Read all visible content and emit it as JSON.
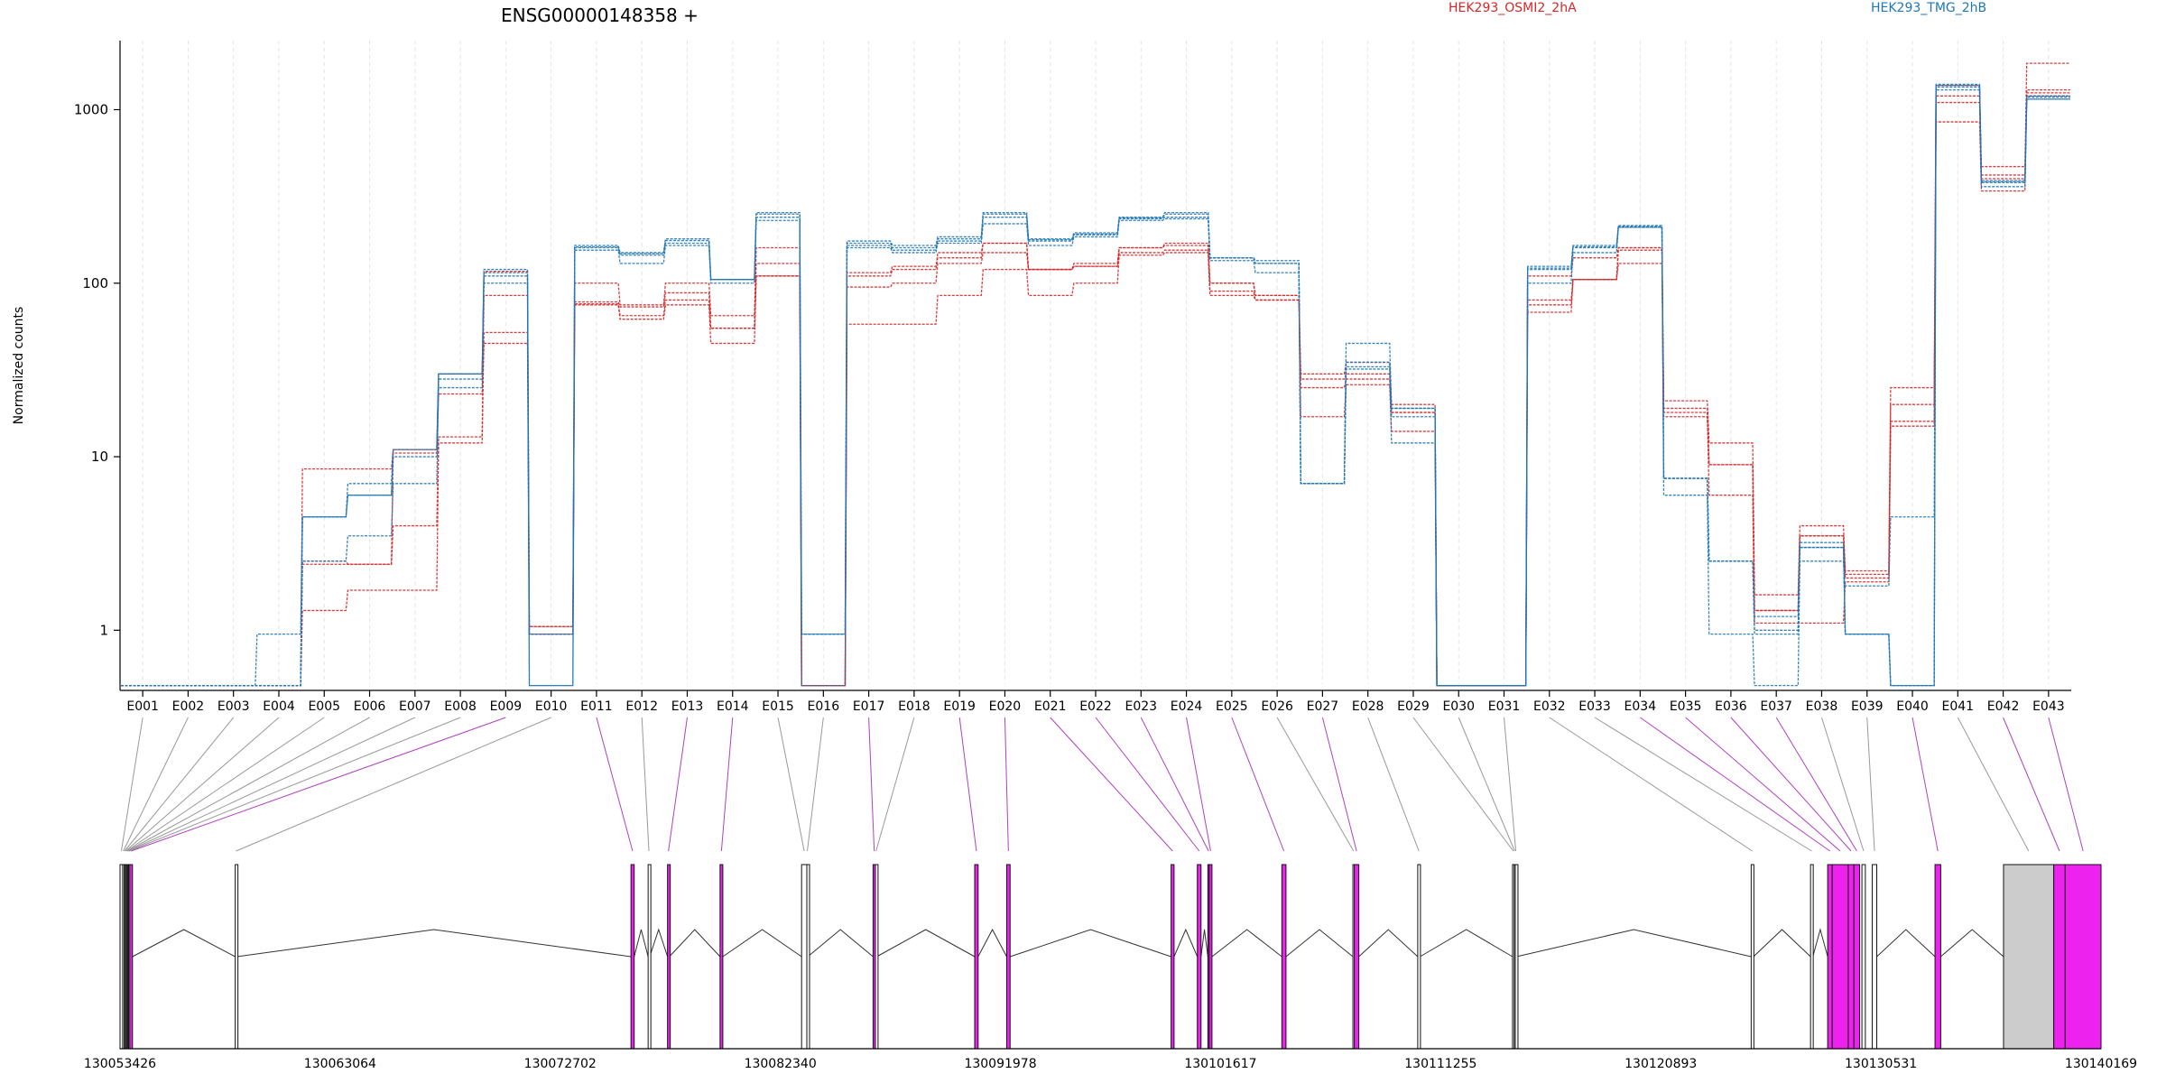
{
  "chart_data": {
    "type": "line",
    "title": "ENSG00000148358 +",
    "ylabel": "Normalized counts",
    "xlabel": "",
    "yscale": "log",
    "ylim": [
      0.45,
      2500
    ],
    "y_ticks": [
      1,
      10,
      100,
      1000
    ],
    "y_tick_labels": [
      "1",
      "10",
      "100",
      "1000"
    ],
    "grid": "vertical dashed lines at each exon",
    "legend_position": "top",
    "categories": [
      "E001",
      "E002",
      "E003",
      "E004",
      "E005",
      "E006",
      "E007",
      "E008",
      "E009",
      "E010",
      "E011",
      "E012",
      "E013",
      "E014",
      "E015",
      "E016",
      "E017",
      "E018",
      "E019",
      "E020",
      "E021",
      "E022",
      "E023",
      "E024",
      "E025",
      "E026",
      "E027",
      "E028",
      "E029",
      "E030",
      "E031",
      "E032",
      "E033",
      "E034",
      "E035",
      "E036",
      "E037",
      "E038",
      "E039",
      "E040",
      "E041",
      "E042",
      "E043"
    ],
    "groups": [
      {
        "name": "HEK293_OSMI2_2hA",
        "color": "#d62728"
      },
      {
        "name": "HEK293_TMG_2hB",
        "color": "#1f77b4"
      }
    ],
    "series": [
      {
        "group": 0,
        "values": [
          0.48,
          0.48,
          0.48,
          0.48,
          8.5,
          8.5,
          11,
          30,
          117,
          0.95,
          78,
          73,
          88,
          55,
          160,
          0.48,
          115,
          125,
          140,
          170,
          120,
          130,
          160,
          170,
          100,
          85,
          30,
          35,
          20,
          0.48,
          0.48,
          80,
          105,
          160,
          21,
          12,
          1.6,
          4,
          2.2,
          25,
          1380,
          470,
          1850
        ]
      },
      {
        "group": 0,
        "values": [
          0.48,
          0.48,
          0.48,
          0.48,
          2.4,
          2.4,
          4,
          13,
          85,
          1.05,
          100,
          75,
          100,
          65,
          130,
          0.48,
          95,
          100,
          130,
          150,
          120,
          125,
          150,
          155,
          90,
          80,
          25,
          28,
          18,
          0.48,
          0.48,
          75,
          105,
          155,
          19,
          9,
          1.3,
          3.5,
          2,
          16,
          1200,
          420,
          1300
        ]
      },
      {
        "group": 0,
        "values": [
          0.48,
          0.48,
          0.48,
          0.48,
          1.3,
          1.7,
          1.7,
          12,
          52,
          1.05,
          76,
          62,
          75,
          45,
          110,
          0.48,
          58,
          58,
          85,
          120,
          85,
          100,
          145,
          150,
          85,
          80,
          17,
          26,
          14,
          0.48,
          0.48,
          68,
          105,
          130,
          18,
          6,
          1.1,
          1.1,
          1.9,
          15,
          850,
          340,
          1200
        ]
      },
      {
        "group": 0,
        "values": [
          0.48,
          0.48,
          0.48,
          0.48,
          2.5,
          2.4,
          10.5,
          23,
          45,
          0.95,
          75,
          65,
          80,
          55,
          110,
          0.48,
          110,
          120,
          150,
          170,
          120,
          125,
          160,
          165,
          100,
          85,
          28,
          30,
          18,
          0.48,
          0.48,
          110,
          140,
          160,
          17,
          9,
          1.3,
          3.5,
          2.1,
          20,
          1100,
          400,
          1250
        ]
      },
      {
        "group": 1,
        "values": [
          0.48,
          0.48,
          0.48,
          0.95,
          4.5,
          6,
          10,
          30,
          120,
          0.95,
          165,
          150,
          180,
          105,
          255,
          0.95,
          175,
          165,
          185,
          255,
          180,
          195,
          240,
          255,
          140,
          130,
          7,
          45,
          19,
          0.48,
          0.48,
          125,
          165,
          215,
          7.5,
          2.5,
          0.95,
          3.2,
          0.95,
          0.48,
          1400,
          390,
          1200
        ]
      },
      {
        "group": 1,
        "values": [
          0.48,
          0.48,
          0.48,
          0.48,
          4.5,
          7,
          11,
          28,
          110,
          0.48,
          160,
          145,
          170,
          105,
          240,
          0.95,
          165,
          155,
          175,
          240,
          175,
          190,
          235,
          240,
          140,
          135,
          7,
          35,
          19,
          0.48,
          0.48,
          120,
          160,
          210,
          7.5,
          2.5,
          1.2,
          3,
          0.95,
          0.48,
          1350,
          380,
          1150
        ]
      },
      {
        "group": 1,
        "values": [
          0.48,
          0.48,
          0.48,
          0.48,
          2.5,
          3.5,
          7,
          25,
          100,
          0.48,
          155,
          130,
          165,
          100,
          230,
          0.48,
          160,
          150,
          170,
          220,
          165,
          185,
          230,
          235,
          135,
          115,
          7,
          33,
          17,
          0.48,
          0.48,
          100,
          150,
          210,
          6,
          0.95,
          0.48,
          2.5,
          1.8,
          4.5,
          1300,
          360,
          1150
        ]
      },
      {
        "group": 1,
        "values": [
          0.48,
          0.48,
          0.48,
          0.48,
          4.5,
          6,
          11,
          30,
          115,
          0.95,
          162,
          148,
          176,
          105,
          250,
          0.95,
          170,
          160,
          180,
          250,
          178,
          192,
          238,
          250,
          140,
          130,
          7,
          32,
          12,
          0.48,
          0.48,
          122,
          162,
          212,
          7.5,
          2.5,
          1,
          3,
          0.95,
          0.48,
          1380,
          385,
          1180
        ]
      }
    ],
    "genomic_ticks": [
      "130053426",
      "130063064",
      "130072702",
      "130082340",
      "130091978",
      "130101617",
      "130111255",
      "130120893",
      "130130531",
      "130140169"
    ],
    "exon_highlight_color": "#ee22ee",
    "exons": [
      {
        "id": "E001",
        "start": 130053426,
        "end": 130053540,
        "hl": false
      },
      {
        "id": "E002",
        "start": 130053540,
        "end": 130053600,
        "hl": false
      },
      {
        "id": "E003",
        "start": 130053600,
        "end": 130053650,
        "hl": false
      },
      {
        "id": "E004",
        "start": 130053650,
        "end": 130053690,
        "hl": false
      },
      {
        "id": "E005",
        "start": 130053690,
        "end": 130053730,
        "hl": false
      },
      {
        "id": "E006",
        "start": 130053730,
        "end": 130053760,
        "hl": false
      },
      {
        "id": "E007",
        "start": 130053760,
        "end": 130053800,
        "hl": false
      },
      {
        "id": "E008",
        "start": 130053800,
        "end": 130053850,
        "hl": false
      },
      {
        "id": "E009",
        "start": 130053850,
        "end": 130053970,
        "hl": true
      },
      {
        "id": "E010",
        "start": 130058470,
        "end": 130058540,
        "hl": false
      },
      {
        "id": "E011",
        "start": 130075800,
        "end": 130075940,
        "hl": true
      },
      {
        "id": "E012",
        "start": 130076550,
        "end": 130076620,
        "hl": false
      },
      {
        "id": "E013",
        "start": 130077400,
        "end": 130077480,
        "hl": true
      },
      {
        "id": "E014",
        "start": 130079700,
        "end": 130079820,
        "hl": true
      },
      {
        "id": "E015",
        "start": 130083270,
        "end": 130083500,
        "hl": false
      },
      {
        "id": "E016",
        "start": 130083500,
        "end": 130083540,
        "hl": false
      },
      {
        "id": "E017",
        "start": 130086400,
        "end": 130086500,
        "hl": true
      },
      {
        "id": "E018",
        "start": 130086500,
        "end": 130086560,
        "hl": false
      },
      {
        "id": "E019",
        "start": 130090850,
        "end": 130091000,
        "hl": true
      },
      {
        "id": "E020",
        "start": 130092250,
        "end": 130092400,
        "hl": true
      },
      {
        "id": "E021",
        "start": 130099450,
        "end": 130099580,
        "hl": true
      },
      {
        "id": "E022",
        "start": 130100600,
        "end": 130100760,
        "hl": true
      },
      {
        "id": "E023",
        "start": 130101060,
        "end": 130101120,
        "hl": true
      },
      {
        "id": "E024",
        "start": 130101120,
        "end": 130101240,
        "hl": true
      },
      {
        "id": "E025",
        "start": 130104300,
        "end": 130104480,
        "hl": true
      },
      {
        "id": "E026",
        "start": 130107410,
        "end": 130107470,
        "hl": false
      },
      {
        "id": "E027",
        "start": 130107470,
        "end": 130107670,
        "hl": true
      },
      {
        "id": "E028",
        "start": 130110250,
        "end": 130110350,
        "hl": false
      },
      {
        "id": "E029",
        "start": 130114400,
        "end": 130114470,
        "hl": false
      },
      {
        "id": "E030",
        "start": 130114470,
        "end": 130114520,
        "hl": false
      },
      {
        "id": "E031",
        "start": 130114520,
        "end": 130114570,
        "hl": false
      },
      {
        "id": "E032",
        "start": 130124850,
        "end": 130124950,
        "hl": false
      },
      {
        "id": "E033",
        "start": 130127450,
        "end": 130127550,
        "hl": false
      },
      {
        "id": "E034",
        "start": 130128200,
        "end": 130128400,
        "hl": true
      },
      {
        "id": "E035",
        "start": 130128400,
        "end": 130129100,
        "hl": true
      },
      {
        "id": "E036",
        "start": 130129100,
        "end": 130129350,
        "hl": true
      },
      {
        "id": "E037",
        "start": 130129350,
        "end": 130129600,
        "hl": true
      },
      {
        "id": "E038",
        "start": 130129700,
        "end": 130129850,
        "hl": false
      },
      {
        "id": "E039",
        "start": 130130150,
        "end": 130130350,
        "hl": false
      },
      {
        "id": "E040",
        "start": 130132900,
        "end": 130133150,
        "hl": true
      },
      {
        "id": "E041",
        "start": 130135900,
        "end": 130138100,
        "hl": false
      },
      {
        "id": "E042",
        "start": 130138100,
        "end": 130138600,
        "hl": true
      },
      {
        "id": "E043",
        "start": 130138600,
        "end": 130140169,
        "hl": true
      }
    ],
    "introns": [
      {
        "from": 130053970,
        "to": 130058470
      },
      {
        "from": 130058540,
        "to": 130075800
      },
      {
        "from": 130075940,
        "to": 130076550
      },
      {
        "from": 130076620,
        "to": 130077400
      },
      {
        "from": 130077480,
        "to": 130079700
      },
      {
        "from": 130079820,
        "to": 130083270
      },
      {
        "from": 130083540,
        "to": 130086400
      },
      {
        "from": 130086560,
        "to": 130090850
      },
      {
        "from": 130091000,
        "to": 130092250
      },
      {
        "from": 130092400,
        "to": 130099450
      },
      {
        "from": 130099580,
        "to": 130100600
      },
      {
        "from": 130100760,
        "to": 130101060
      },
      {
        "from": 130101240,
        "to": 130104300
      },
      {
        "from": 130104480,
        "to": 130107410
      },
      {
        "from": 130107670,
        "to": 130110250
      },
      {
        "from": 130110350,
        "to": 130114400
      },
      {
        "from": 130114570,
        "to": 130124850
      },
      {
        "from": 130124950,
        "to": 130127450
      },
      {
        "from": 130127550,
        "to": 130128200
      },
      {
        "from": 130130350,
        "to": 130132900
      },
      {
        "from": 130133150,
        "to": 130135900
      }
    ]
  }
}
